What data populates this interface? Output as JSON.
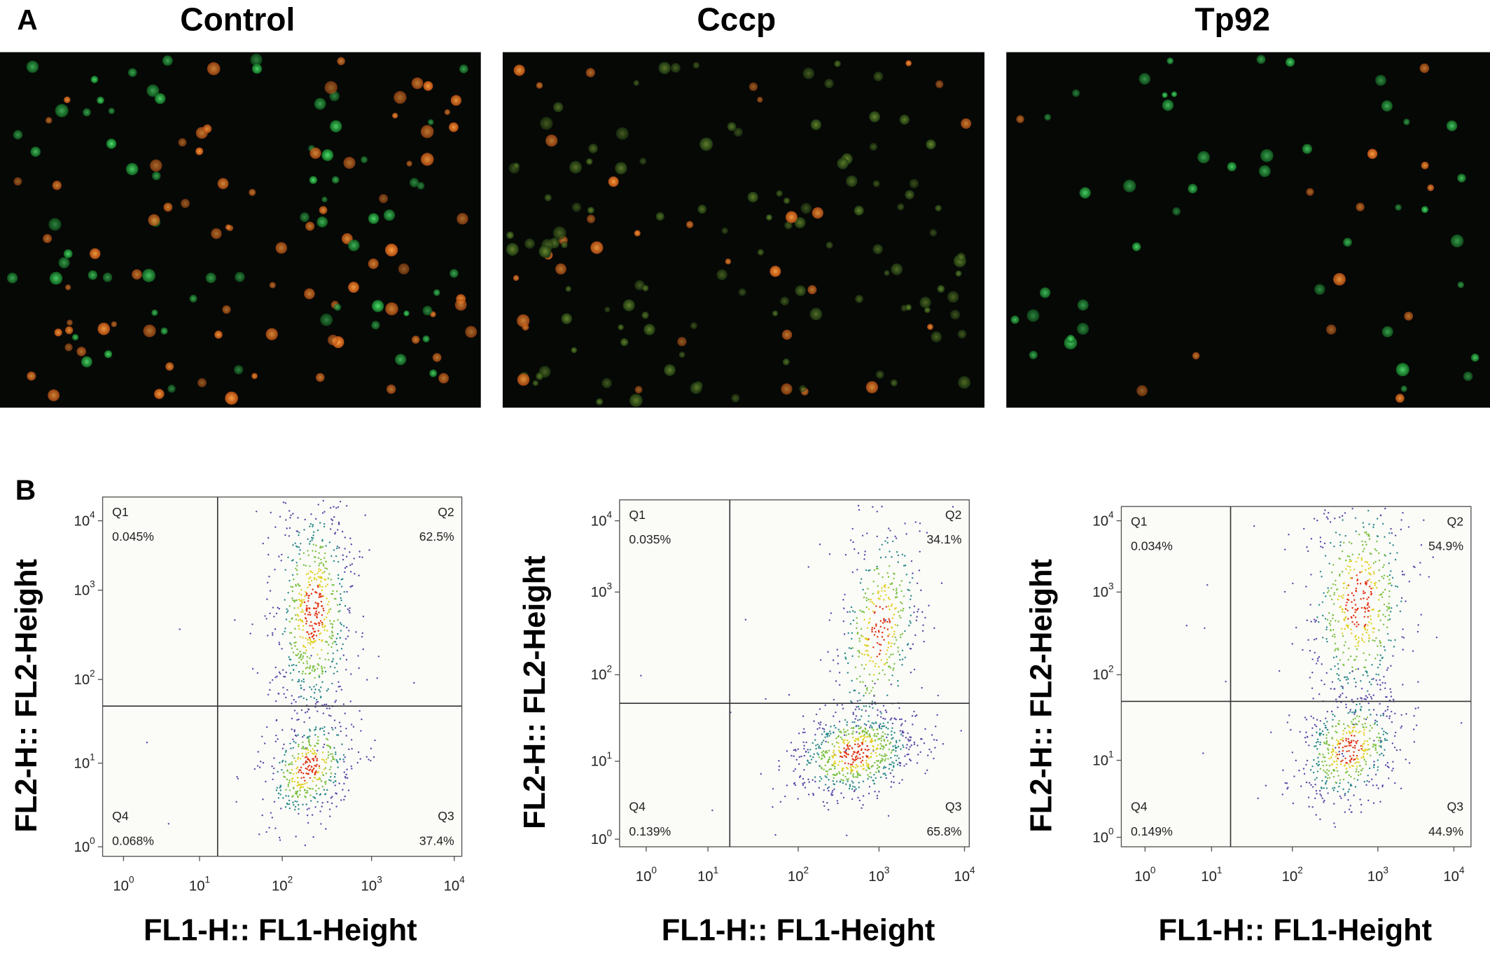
{
  "panel_a": {
    "label": "A",
    "images": [
      {
        "title": "Control"
      },
      {
        "title": "Cccp"
      },
      {
        "title": "Tp92"
      }
    ]
  },
  "panel_b": {
    "label": "B",
    "plots": [
      {
        "y_label": "FL2-H:: FL2-Height",
        "x_label": "FL1-H:: FL1-Height",
        "x_ticks": [
          {
            "base": "10",
            "exponent": "0"
          },
          {
            "base": "10",
            "exponent": "1"
          },
          {
            "base": "10",
            "exponent": "2"
          },
          {
            "base": "10",
            "exponent": "3"
          },
          {
            "base": "10",
            "exponent": "4"
          }
        ],
        "y_ticks": [
          {
            "base": "10",
            "exponent": "0"
          },
          {
            "base": "10",
            "exponent": "1"
          },
          {
            "base": "10",
            "exponent": "2"
          },
          {
            "base": "10",
            "exponent": "3"
          },
          {
            "base": "10",
            "exponent": "4"
          }
        ],
        "quadrants": [
          {
            "name": "Q1",
            "value": "0.045%"
          },
          {
            "name": "Q2",
            "value": "62.5%"
          },
          {
            "name": "Q3",
            "value": "37.4%"
          },
          {
            "name": "Q4",
            "value": "0.068%"
          }
        ]
      },
      {
        "y_label": "FL2-H:: FL2-Height",
        "x_label": "FL1-H:: FL1-Height",
        "x_ticks": [
          {
            "base": "10",
            "exponent": "0"
          },
          {
            "base": "10",
            "exponent": "1"
          },
          {
            "base": "10",
            "exponent": "2"
          },
          {
            "base": "10",
            "exponent": "3"
          },
          {
            "base": "10",
            "exponent": "4"
          }
        ],
        "y_ticks": [
          {
            "base": "10",
            "exponent": "0"
          },
          {
            "base": "10",
            "exponent": "1"
          },
          {
            "base": "10",
            "exponent": "2"
          },
          {
            "base": "10",
            "exponent": "3"
          },
          {
            "base": "10",
            "exponent": "4"
          }
        ],
        "quadrants": [
          {
            "name": "Q1",
            "value": "0.035%"
          },
          {
            "name": "Q2",
            "value": "34.1%"
          },
          {
            "name": "Q3",
            "value": "65.8%"
          },
          {
            "name": "Q4",
            "value": "0.139%"
          }
        ]
      },
      {
        "y_label": "FL2-H:: FL2-Height",
        "x_label": "FL1-H:: FL1-Height",
        "x_ticks": [
          {
            "base": "10",
            "exponent": "0"
          },
          {
            "base": "10",
            "exponent": "1"
          },
          {
            "base": "10",
            "exponent": "2"
          },
          {
            "base": "10",
            "exponent": "3"
          },
          {
            "base": "10",
            "exponent": "4"
          }
        ],
        "y_ticks": [
          {
            "base": "10",
            "exponent": "0"
          },
          {
            "base": "10",
            "exponent": "1"
          },
          {
            "base": "10",
            "exponent": "2"
          },
          {
            "base": "10",
            "exponent": "3"
          },
          {
            "base": "10",
            "exponent": "4"
          }
        ],
        "quadrants": [
          {
            "name": "Q1",
            "value": "0.034%"
          },
          {
            "name": "Q2",
            "value": "54.9%"
          },
          {
            "name": "Q3",
            "value": "44.9%"
          },
          {
            "name": "Q4",
            "value": "0.149%"
          }
        ]
      }
    ]
  }
}
